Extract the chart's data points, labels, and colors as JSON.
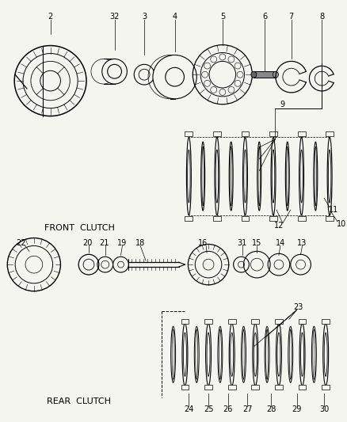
{
  "bg_color": "#f5f5f0",
  "line_color": "#1a1a1a",
  "labels": {
    "front_clutch": "FRONT  CLUTCH",
    "rear_clutch": "REAR  CLUTCH"
  },
  "fig_width": 4.38,
  "fig_height": 5.33,
  "dpi": 100,
  "part_labels_top": [
    "2",
    "32",
    "3",
    "4",
    "5",
    "6",
    "7",
    "8"
  ],
  "part_labels_mid": [
    "9",
    "10",
    "11",
    "12"
  ],
  "part_labels_row2": [
    "22",
    "20",
    "21",
    "19",
    "18",
    "16",
    "31",
    "15",
    "14",
    "13"
  ],
  "part_labels_bot": [
    "23",
    "24",
    "25",
    "26",
    "27",
    "28",
    "29",
    "30"
  ]
}
